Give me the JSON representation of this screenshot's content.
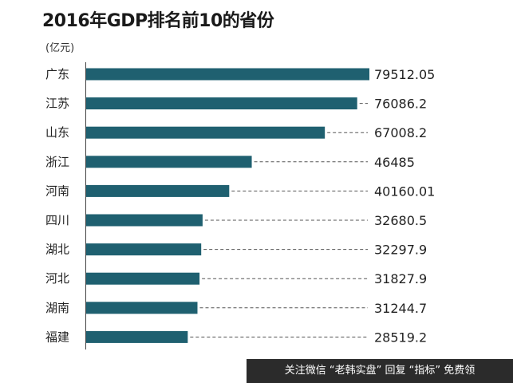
{
  "chart_data": {
    "type": "bar",
    "orientation": "horizontal",
    "title": "2016年GDP排名前10的省份",
    "unit": "(亿元)",
    "categories": [
      "广东",
      "江苏",
      "山东",
      "浙江",
      "河南",
      "四川",
      "湖北",
      "河北",
      "湖南",
      "福建"
    ],
    "values": [
      79512.05,
      76086.2,
      67008.2,
      46485,
      40160.01,
      32680.5,
      32297.9,
      31827.9,
      31244.7,
      28519.2
    ],
    "value_labels": [
      "79512.05",
      "76086.2",
      "67008.2",
      "46485",
      "40160.01",
      "32680.5",
      "32297.9",
      "31827.9",
      "31244.7",
      "28519.2"
    ],
    "xlim": [
      0,
      79512.05
    ],
    "bar_color": "#1f6070",
    "leader_line_color": "#555555",
    "grid": false,
    "leader_lines": "dashed"
  },
  "watermark": {
    "text": "关注微信 “老韩实盘” 回复 “指标” 免费领"
  }
}
